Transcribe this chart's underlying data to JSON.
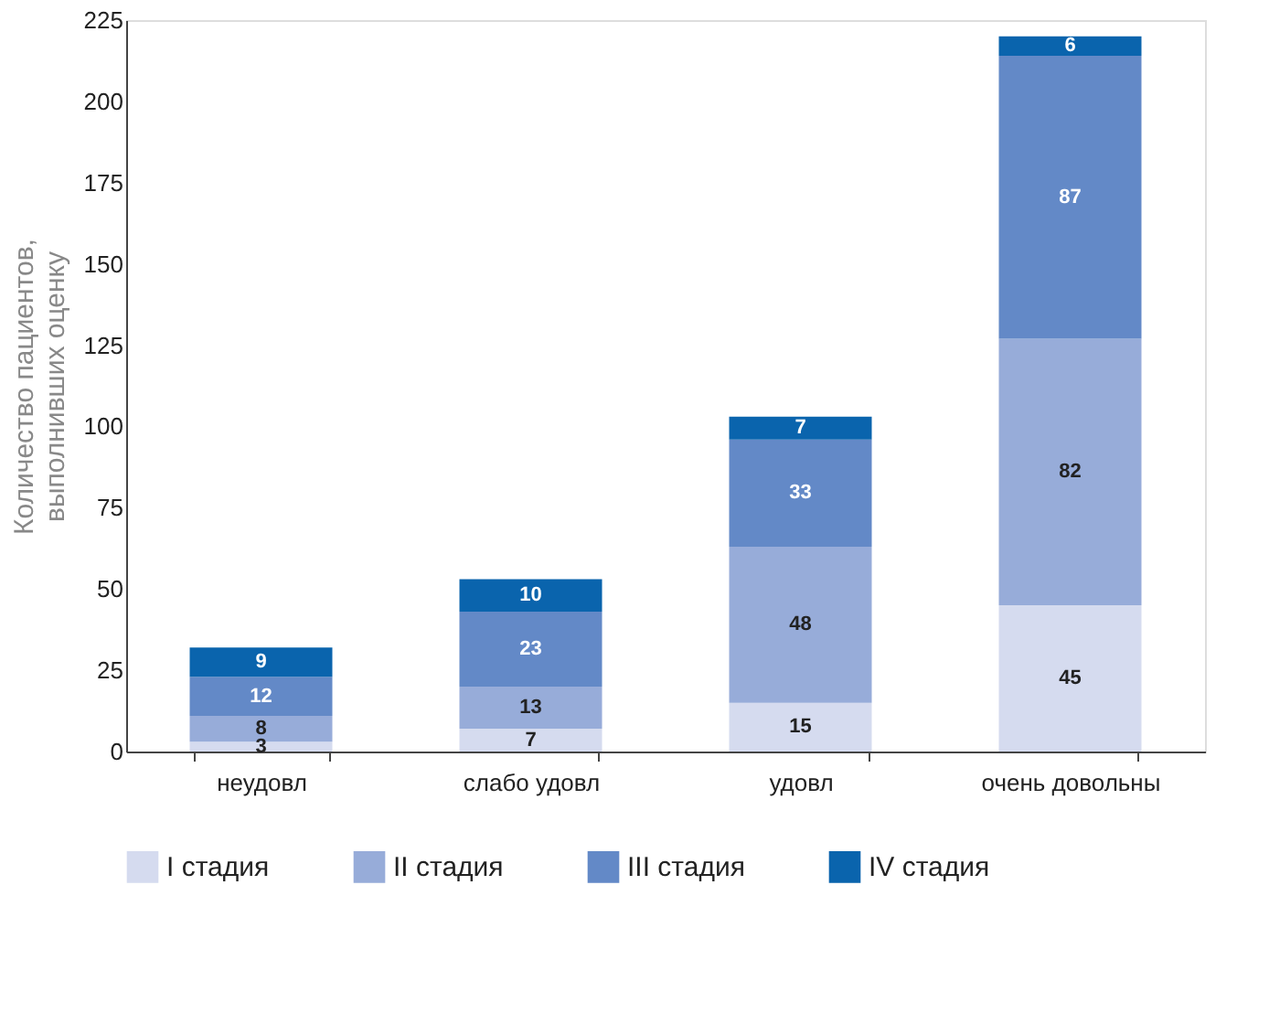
{
  "chart_data": {
    "type": "bar",
    "stacked": true,
    "ylabel": "Количество пациентов,\nвыполнивших оценку",
    "categories": [
      "неудовл",
      "слабо удовл",
      "удовл",
      "очень довольны"
    ],
    "series": [
      {
        "name": "I стадия",
        "color": "#d5dbef",
        "values": [
          3,
          7,
          15,
          45
        ]
      },
      {
        "name": "II стадия",
        "color": "#97acd9",
        "values": [
          8,
          13,
          48,
          82
        ]
      },
      {
        "name": "III стадия",
        "color": "#6389c7",
        "values": [
          12,
          23,
          33,
          87
        ]
      },
      {
        "name": "IV стадия",
        "color": "#0a64ad",
        "values": [
          9,
          10,
          7,
          6
        ]
      }
    ],
    "ylim": [
      0,
      225
    ],
    "yticks": [
      0,
      25,
      50,
      75,
      100,
      125,
      150,
      175,
      200,
      225
    ],
    "data_labels": true,
    "grid": false,
    "legend": "bottom"
  }
}
